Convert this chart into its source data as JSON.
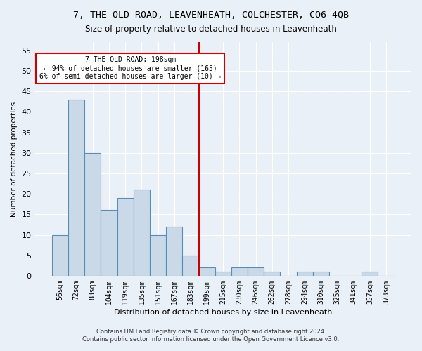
{
  "title": "7, THE OLD ROAD, LEAVENHEATH, COLCHESTER, CO6 4QB",
  "subtitle": "Size of property relative to detached houses in Leavenheath",
  "xlabel": "Distribution of detached houses by size in Leavenheath",
  "ylabel": "Number of detached properties",
  "footnote1": "Contains HM Land Registry data © Crown copyright and database right 2024.",
  "footnote2": "Contains public sector information licensed under the Open Government Licence v3.0.",
  "bar_labels": [
    "56sqm",
    "72sqm",
    "88sqm",
    "104sqm",
    "119sqm",
    "135sqm",
    "151sqm",
    "167sqm",
    "183sqm",
    "199sqm",
    "215sqm",
    "230sqm",
    "246sqm",
    "262sqm",
    "278sqm",
    "294sqm",
    "310sqm",
    "325sqm",
    "341sqm",
    "357sqm",
    "373sqm"
  ],
  "bar_values": [
    10,
    43,
    30,
    16,
    19,
    21,
    10,
    12,
    5,
    2,
    1,
    2,
    2,
    1,
    0,
    1,
    1,
    0,
    0,
    1,
    0
  ],
  "bar_color": "#c9d9e8",
  "bar_edge_color": "#5a8db5",
  "bar_edge_width": 0.8,
  "vline_color": "#cc0000",
  "annotation_text": "7 THE OLD ROAD: 198sqm\n← 94% of detached houses are smaller (165)\n6% of semi-detached houses are larger (10) →",
  "annotation_box_color": "white",
  "annotation_box_edge": "#cc0000",
  "ylim": [
    0,
    57
  ],
  "yticks": [
    0,
    5,
    10,
    15,
    20,
    25,
    30,
    35,
    40,
    45,
    50,
    55
  ],
  "bg_color": "#eaf0f7",
  "plot_bg_color": "#eaf0f7",
  "grid_color": "white",
  "title_fontsize": 9.5,
  "subtitle_fontsize": 8.5,
  "footnote_fontsize": 6.0
}
